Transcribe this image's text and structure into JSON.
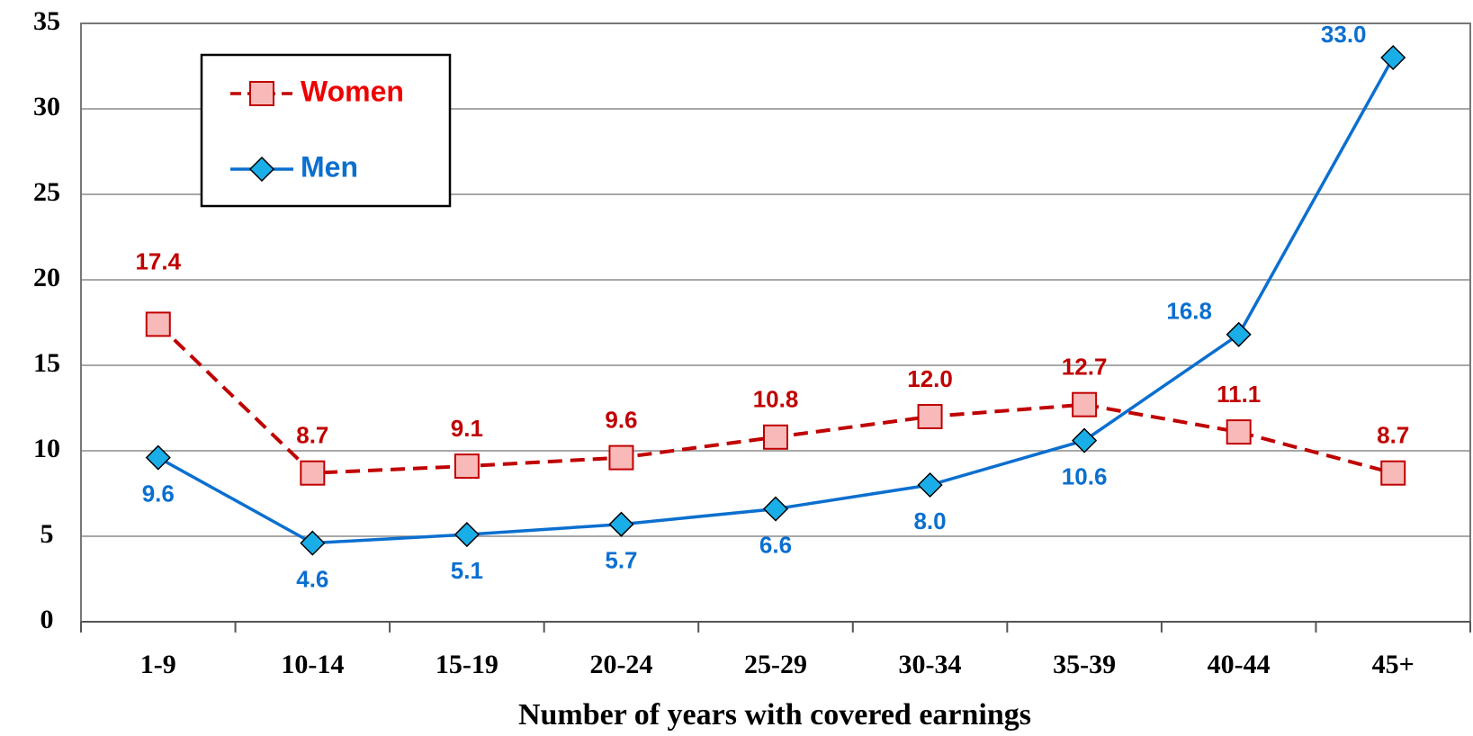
{
  "chart_data": {
    "type": "line",
    "x_label": "Number of years with covered earnings",
    "categories": [
      "1-9",
      "10-14",
      "15-19",
      "20-24",
      "25-29",
      "30-34",
      "35-39",
      "40-44",
      "45+"
    ],
    "series": [
      {
        "name": "Women",
        "color": "#c00000",
        "marker_fill": "#f8b9b9",
        "dash": true,
        "values": [
          17.4,
          8.7,
          9.1,
          9.6,
          10.8,
          12.0,
          12.7,
          11.1,
          8.7
        ],
        "value_labels": [
          "17.4",
          "8.7",
          "9.1",
          "9.6",
          "10.8",
          "12.0",
          "12.7",
          "11.1",
          "8.7"
        ]
      },
      {
        "name": "Men",
        "color": "#0b6fcf",
        "marker_fill": "#1aaee8",
        "dash": false,
        "values": [
          9.6,
          4.6,
          5.1,
          5.7,
          6.6,
          8.0,
          10.6,
          16.8,
          33.0
        ],
        "value_labels": [
          "9.6",
          "4.6",
          "5.1",
          "5.7",
          "6.6",
          "8.0",
          "10.6",
          "16.8",
          "33.0"
        ]
      }
    ],
    "ylim": [
      0,
      35
    ],
    "yticks": [
      0,
      5,
      10,
      15,
      20,
      25,
      30,
      35
    ],
    "grid": true
  }
}
